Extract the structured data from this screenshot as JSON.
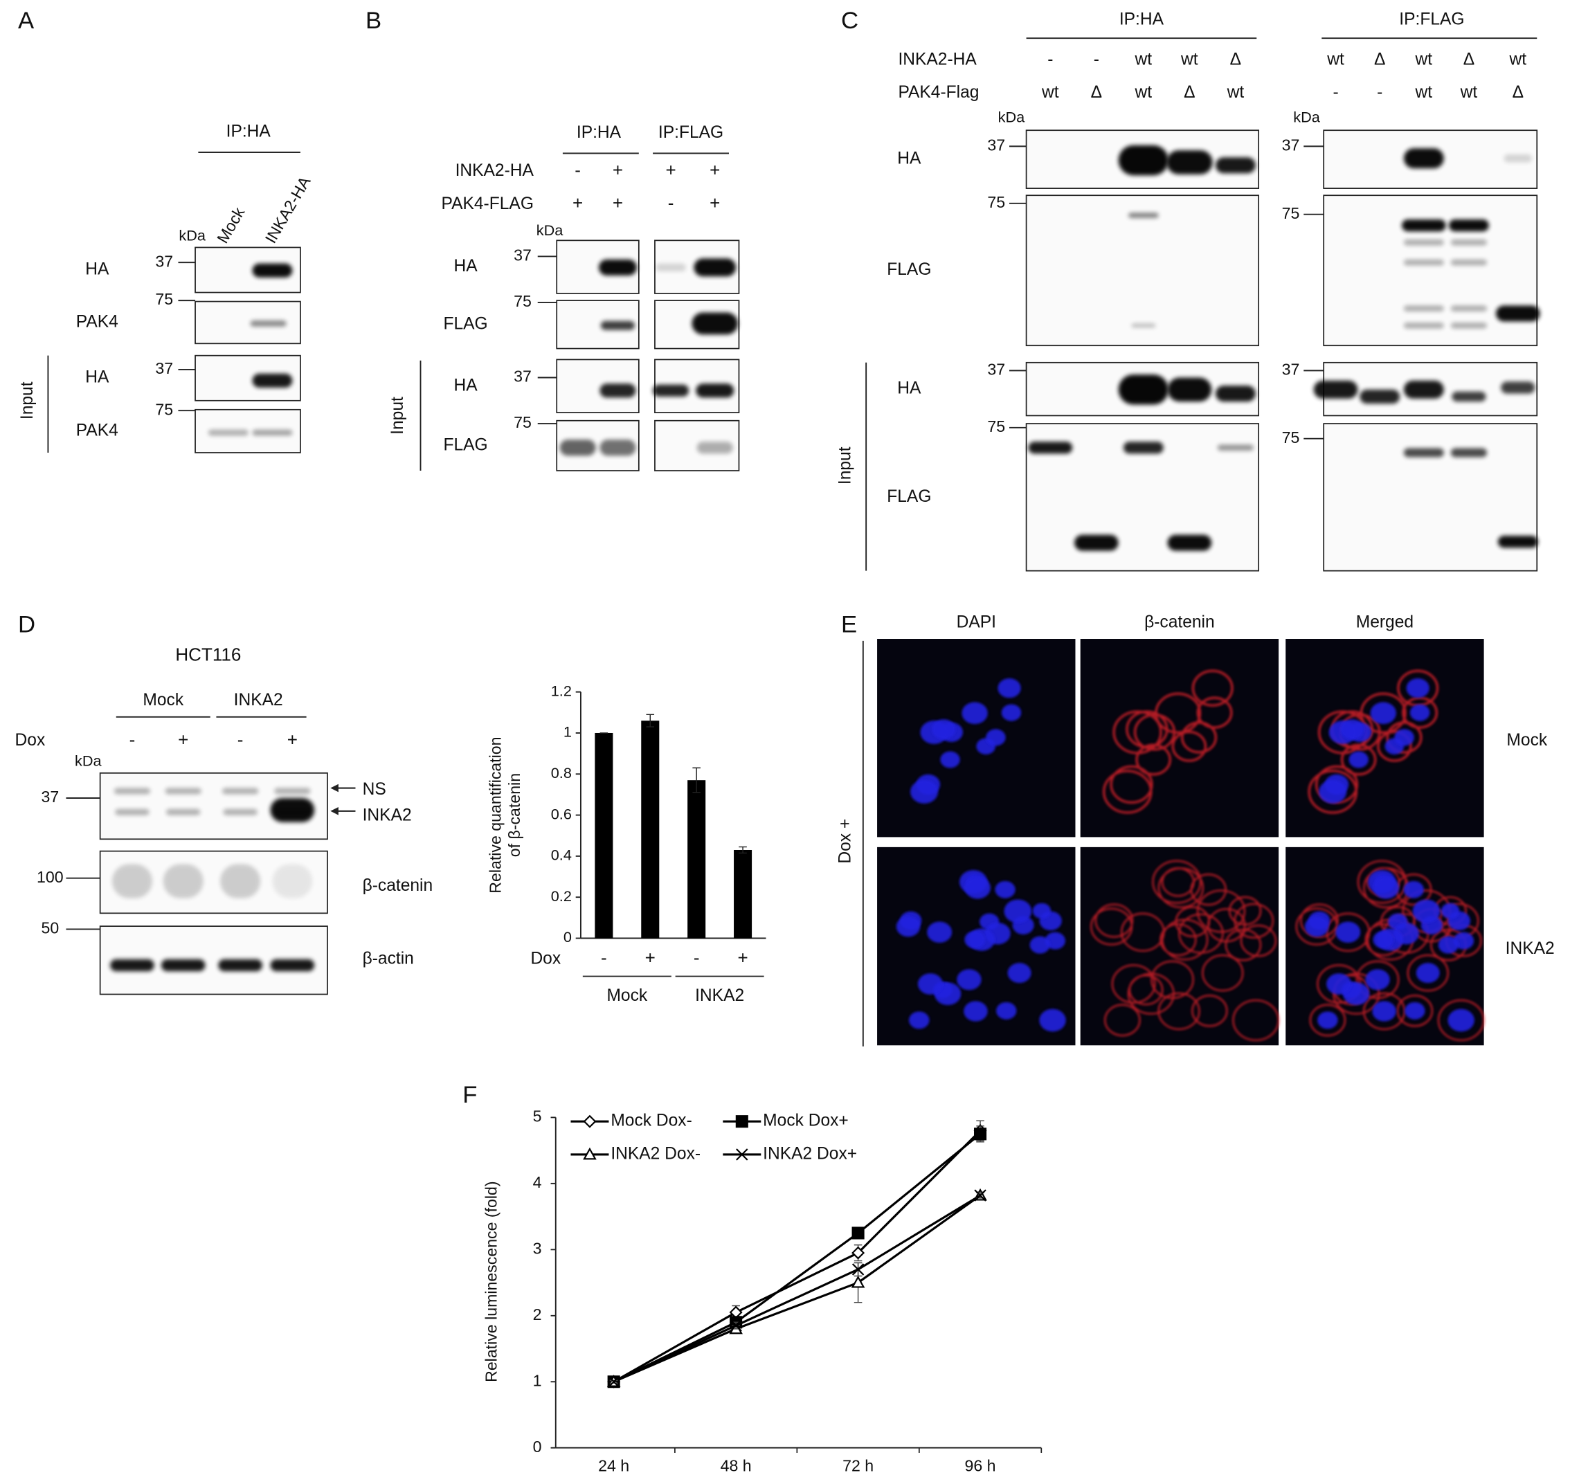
{
  "panels": {
    "A": {
      "label": "A",
      "ip": "IP:HA",
      "kda": "kDa",
      "lanes": [
        "Mock",
        "INKA2-HA"
      ],
      "input": "Input",
      "rows": [
        {
          "name": "HA",
          "marker": "37"
        },
        {
          "name": "PAK4",
          "marker": "75"
        },
        {
          "name": "HA",
          "marker": "37"
        },
        {
          "name": "PAK4",
          "marker": "75"
        }
      ]
    },
    "B": {
      "label": "B",
      "ips": [
        "IP:HA",
        "IP:FLAG"
      ],
      "kda": "kDa",
      "input": "Input",
      "conditions": [
        {
          "name": "INKA2-HA",
          "signs": [
            "-",
            "+",
            "+",
            "+"
          ]
        },
        {
          "name": "PAK4-FLAG",
          "signs": [
            "+",
            "+",
            "-",
            "+"
          ]
        }
      ],
      "rows": [
        {
          "name": "HA",
          "marker": "37"
        },
        {
          "name": "FLAG",
          "marker": "75"
        },
        {
          "name": "HA",
          "marker": "37"
        },
        {
          "name": "FLAG",
          "marker": "75"
        }
      ]
    },
    "C": {
      "label": "C",
      "ips": [
        "IP:HA",
        "IP:FLAG"
      ],
      "kda": "kDa",
      "input": "Input",
      "conditions": [
        {
          "name": "INKA2-HA",
          "left": [
            "-",
            "-",
            "wt",
            "wt",
            "Δ"
          ],
          "right": [
            "wt",
            "Δ",
            "wt",
            "Δ",
            "wt"
          ]
        },
        {
          "name": "PAK4-Flag",
          "left": [
            "wt",
            "Δ",
            "wt",
            "Δ",
            "wt"
          ],
          "right": [
            "-",
            "-",
            "wt",
            "wt",
            "Δ"
          ]
        }
      ],
      "rows": [
        {
          "name": "HA",
          "marker": "37"
        },
        {
          "name": "FLAG",
          "marker": "75"
        },
        {
          "name": "HA",
          "marker": "37"
        },
        {
          "name": "FLAG",
          "marker": "75"
        }
      ]
    },
    "D": {
      "label": "D",
      "cell_line": "HCT116",
      "groups": [
        "Mock",
        "INKA2"
      ],
      "dox": "Dox",
      "signs": [
        "-",
        "+",
        "-",
        "+"
      ],
      "kda": "kDa",
      "markers": [
        "37",
        "100",
        "50"
      ],
      "arrows": [
        "NS",
        "INKA2"
      ],
      "rows": [
        "β-catenin",
        "β-actin"
      ]
    },
    "E": {
      "label": "E",
      "columns": [
        "DAPI",
        "β-catenin",
        "Merged"
      ],
      "rows": [
        "Mock",
        "INKA2"
      ],
      "side": "Dox +"
    },
    "F": {
      "label": "F"
    }
  },
  "chart_data": [
    {
      "type": "bar",
      "ylabel_lines": [
        "Relative quantification",
        "of β-catenin"
      ],
      "x_title": "Dox",
      "categories": [
        "-",
        "+",
        "-",
        "+"
      ],
      "groups": [
        "Mock",
        "INKA2"
      ],
      "values": [
        1,
        1.06,
        0.77,
        0.43
      ],
      "errors": [
        0,
        0.03,
        0.06,
        0.015
      ],
      "color": "#000000",
      "ylim": [
        0,
        1.2
      ],
      "yticks": [
        0,
        0.2,
        0.4,
        0.6,
        0.8,
        1,
        1.2
      ]
    },
    {
      "type": "line",
      "ylabel": "Relative luminescence (fold)",
      "categories": [
        "24 h",
        "48 h",
        "72 h",
        "96 h"
      ],
      "ylim": [
        0,
        5
      ],
      "yticks": [
        0,
        1,
        2,
        3,
        4,
        5
      ],
      "series": [
        {
          "name": "Mock Dox-",
          "color": "#000000",
          "marker": "diamond",
          "values": [
            1,
            2.05,
            2.95,
            4.8
          ],
          "errors": [
            0.02,
            0.1,
            0.12,
            0.15
          ]
        },
        {
          "name": "Mock Dox+",
          "color": "#000000",
          "marker": "square",
          "values": [
            1,
            1.9,
            3.25,
            4.75
          ],
          "errors": [
            0.02,
            0.06,
            0.05,
            0.12
          ]
        },
        {
          "name": "INKA2 Dox-",
          "color": "#000000",
          "marker": "triangle",
          "values": [
            1,
            1.8,
            2.5,
            3.82
          ],
          "errors": [
            0.02,
            0.05,
            0.3,
            0.05
          ]
        },
        {
          "name": "INKA2 Dox+",
          "color": "#000000",
          "marker": "x",
          "values": [
            1,
            1.85,
            2.7,
            3.82
          ],
          "errors": [
            0.02,
            0.05,
            0.1,
            0.04
          ]
        }
      ]
    }
  ]
}
